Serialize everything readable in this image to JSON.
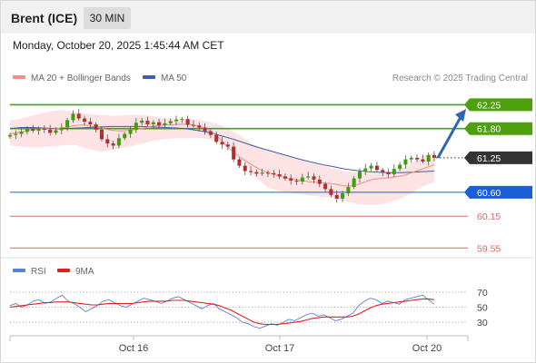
{
  "header": {
    "title": "Brent (ICE)",
    "timeframe": "30 MIN"
  },
  "datetime": "Monday, October 20, 2025 1:45:44 AM CET",
  "legend": {
    "ma20": {
      "label": "MA 20 + Bollinger Bands",
      "color": "#f28b8b"
    },
    "ma50": {
      "label": "MA 50",
      "color": "#3c5ea8"
    },
    "rsi": {
      "label": "RSI",
      "color": "#5a7fd6"
    },
    "rsi_ma": {
      "label": "9MA",
      "color": "#e02020"
    }
  },
  "credit": "Research © 2025 Trading Central",
  "chart_data": [
    {
      "type": "candlestick",
      "title": "Brent (ICE)",
      "timeframe": "30 MIN",
      "x_ticks": [
        "Oct 16",
        "Oct 17",
        "Oct 20"
      ],
      "y_range": [
        59.35,
        62.65
      ],
      "close_series": [
        61.68,
        61.7,
        61.74,
        61.79,
        61.76,
        61.8,
        61.78,
        61.72,
        61.77,
        61.82,
        61.96,
        62.08,
        61.99,
        61.93,
        61.88,
        61.78,
        61.6,
        61.52,
        61.48,
        61.62,
        61.7,
        61.78,
        61.91,
        61.95,
        61.88,
        61.92,
        61.86,
        61.9,
        61.94,
        61.97,
        61.98,
        61.87,
        61.86,
        61.82,
        61.75,
        61.68,
        61.55,
        61.5,
        61.46,
        61.22,
        61.1,
        61.0,
        60.98,
        60.95,
        60.97,
        60.96,
        60.94,
        60.9,
        60.86,
        60.82,
        60.8,
        60.88,
        60.9,
        60.84,
        60.76,
        60.66,
        60.55,
        60.48,
        60.58,
        60.7,
        60.86,
        60.99,
        61.05,
        61.1,
        61.02,
        60.98,
        60.94,
        61.04,
        61.12,
        61.22,
        61.25,
        61.22,
        61.18,
        61.3,
        61.25
      ],
      "ma20_series": [
        61.7,
        61.72,
        61.74,
        61.76,
        61.78,
        61.8,
        61.8,
        61.79,
        61.8,
        61.82,
        61.84,
        61.86,
        61.87,
        61.86,
        61.84,
        61.82,
        61.79,
        61.77,
        61.76,
        61.76,
        61.77,
        61.78,
        61.8,
        61.83,
        61.85,
        61.86,
        61.87,
        61.87,
        61.88,
        61.88,
        61.88,
        61.86,
        61.83,
        61.79,
        61.72,
        61.62,
        61.5,
        61.4,
        61.3,
        61.22,
        61.15,
        61.08,
        61.02,
        60.98,
        60.94,
        60.91,
        60.88,
        60.86,
        60.84,
        60.82,
        60.8,
        60.79,
        60.78,
        60.77,
        60.76,
        60.74,
        60.72,
        60.72,
        60.74,
        60.78,
        60.82,
        60.85,
        60.86,
        60.87,
        60.88,
        60.9,
        60.92,
        60.96,
        61.0,
        61.04,
        61.08,
        61.12
      ],
      "ma50_series": [
        61.8,
        61.82,
        61.82,
        61.81,
        61.8,
        61.8,
        61.81,
        61.82,
        61.83,
        61.84,
        61.84,
        61.84,
        61.84,
        61.83,
        61.82,
        61.81,
        61.79,
        61.76,
        61.72,
        61.66,
        61.6,
        61.53,
        61.46,
        61.4,
        61.34,
        61.28,
        61.22,
        61.17,
        61.12,
        61.08,
        61.04,
        61.01,
        60.99,
        60.98,
        60.97,
        60.97,
        60.98,
        60.99,
        61.0
      ],
      "bb_upper_series": [
        61.95,
        62.0,
        62.06,
        62.12,
        62.15,
        62.12,
        62.08,
        62.06,
        62.04,
        62.06,
        62.06,
        62.04,
        62.0,
        61.98,
        61.98,
        61.95,
        61.9,
        61.8,
        61.65,
        61.5,
        61.4,
        61.32,
        61.25,
        61.18,
        61.12,
        61.06,
        61.0,
        60.98,
        60.97,
        60.96,
        61.0,
        61.12,
        61.28,
        61.35
      ],
      "bb_lower_series": [
        61.48,
        61.46,
        61.44,
        61.46,
        61.48,
        61.5,
        61.42,
        61.36,
        61.4,
        61.45,
        61.5,
        61.56,
        61.6,
        61.62,
        61.62,
        61.62,
        61.58,
        61.5,
        61.2,
        60.9,
        60.7,
        60.62,
        60.58,
        60.55,
        60.52,
        60.5,
        60.44,
        60.38,
        60.36,
        60.38,
        60.45,
        60.55,
        60.7,
        60.8
      ],
      "levels": [
        {
          "label": "62.25",
          "value": 62.25,
          "color": "#4ea10c"
        },
        {
          "label": "61.80",
          "value": 61.8,
          "color": "#4ea10c"
        },
        {
          "label": "61.25",
          "value": 61.25,
          "color": "#333333"
        },
        {
          "label": "60.60",
          "value": 60.6,
          "color": "#1a5fd8"
        },
        {
          "label": "60.15",
          "value": 60.15,
          "color": "#e06565"
        },
        {
          "label": "59.55",
          "value": 59.55,
          "color": "#e06565"
        }
      ],
      "forecast_arrow": {
        "from": 61.25,
        "to": 62.1,
        "color": "#2f67b3"
      }
    },
    {
      "type": "line",
      "title": "RSI",
      "y_range": [
        18,
        82
      ],
      "y_ticks": [
        70,
        50,
        30
      ],
      "x_ticks": [
        "Oct 16",
        "Oct 17",
        "Oct 20"
      ],
      "series": [
        {
          "name": "RSI",
          "color": "#5a7fd6",
          "values": [
            52,
            55,
            50,
            53,
            58,
            60,
            55,
            57,
            62,
            66,
            58,
            55,
            50,
            44,
            48,
            52,
            58,
            60,
            56,
            52,
            50,
            54,
            58,
            62,
            60,
            58,
            55,
            58,
            62,
            64,
            60,
            56,
            52,
            48,
            52,
            55,
            48,
            44,
            40,
            36,
            30,
            28,
            24,
            22,
            25,
            28,
            26,
            30,
            34,
            32,
            36,
            40,
            42,
            38,
            40,
            36,
            32,
            34,
            38,
            42,
            52,
            58,
            62,
            60,
            55,
            58,
            56,
            54,
            60,
            62,
            64,
            66,
            60,
            54
          ]
        },
        {
          "name": "9MA",
          "color": "#e02020",
          "values": [
            50,
            51,
            52,
            53,
            54,
            55,
            56,
            56,
            57,
            57,
            57,
            56,
            55,
            54,
            53,
            53,
            54,
            55,
            55,
            55,
            55,
            55,
            56,
            57,
            58,
            58,
            58,
            58,
            59,
            59,
            59,
            58,
            57,
            56,
            55,
            54,
            52,
            49,
            46,
            42,
            38,
            34,
            30,
            28,
            27,
            27,
            27,
            28,
            29,
            30,
            31,
            33,
            35,
            36,
            37,
            37,
            37,
            37,
            37,
            38,
            41,
            45,
            49,
            52,
            54,
            55,
            56,
            57,
            58,
            59,
            60,
            61,
            61,
            60
          ]
        }
      ]
    }
  ]
}
